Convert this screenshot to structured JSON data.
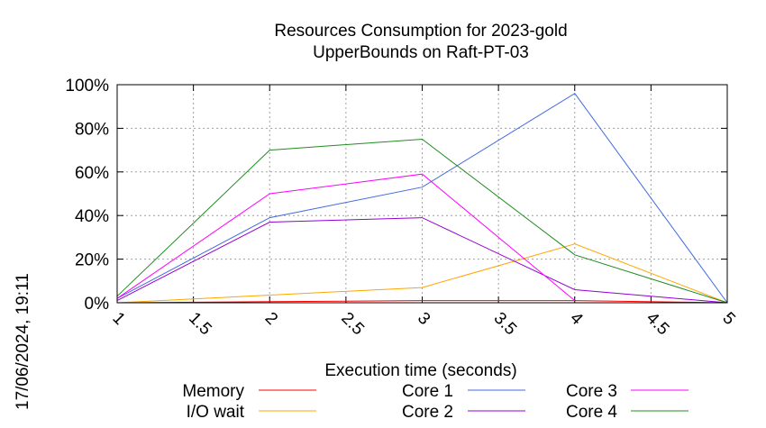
{
  "timestamp": "17/06/2024, 19:11",
  "chart_data": {
    "type": "line",
    "title": "Resources Consumption for 2023-gold",
    "subtitle": "UpperBounds on Raft-PT-03",
    "xlabel": "Execution time (seconds)",
    "ylabel": "",
    "xlim": [
      1,
      5
    ],
    "ylim": [
      0,
      100
    ],
    "x_ticks": [
      1,
      1.5,
      2,
      2.5,
      3,
      3.5,
      4,
      4.5,
      5
    ],
    "x_tick_labels": [
      "1",
      "1.5",
      "2",
      "2.5",
      "3",
      "3.5",
      "4",
      "4.5",
      "5"
    ],
    "y_ticks": [
      0,
      20,
      40,
      60,
      80,
      100
    ],
    "y_tick_labels": [
      "0%",
      "20%",
      "40%",
      "60%",
      "80%",
      "100%"
    ],
    "grid": true,
    "legend_position": "bottom",
    "x": [
      1,
      2,
      3,
      4,
      5
    ],
    "series": [
      {
        "name": "Memory",
        "color": "#ff0000",
        "values": [
          0,
          0.5,
          1,
          1,
          0
        ]
      },
      {
        "name": "I/O wait",
        "color": "#ffa500",
        "values": [
          0,
          3.5,
          7,
          27,
          0
        ]
      },
      {
        "name": "Core 1",
        "color": "#4169e1",
        "values": [
          2,
          39,
          53,
          96,
          0
        ]
      },
      {
        "name": "Core 2",
        "color": "#9400d3",
        "values": [
          1,
          37,
          39,
          6,
          0
        ]
      },
      {
        "name": "Core 3",
        "color": "#ff00ff",
        "x": [
          1,
          2,
          3,
          4
        ],
        "values": [
          2,
          50,
          59,
          1
        ]
      },
      {
        "name": "Core 4",
        "color": "#228b22",
        "values": [
          3,
          70,
          75,
          22,
          0
        ]
      }
    ]
  }
}
